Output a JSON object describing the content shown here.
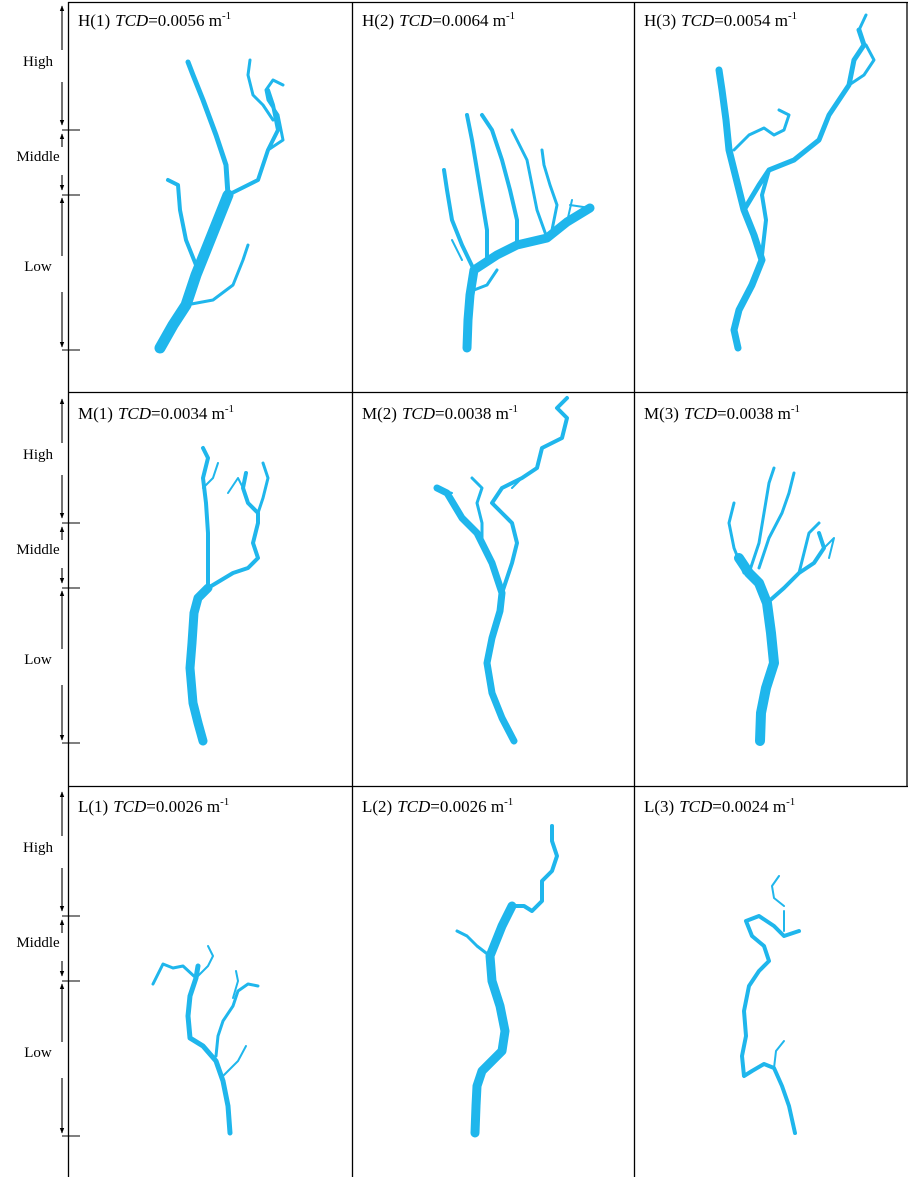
{
  "rows": [
    {
      "zones": [
        "High",
        "Middle",
        "Low"
      ],
      "panels": [
        {
          "label": "H(1)",
          "metric": "TCD",
          "value": "=0.0056 m",
          "exponent": "-1"
        },
        {
          "label": "H(2)",
          "metric": "TCD",
          "value": "=0.0064 m",
          "exponent": "-1"
        },
        {
          "label": "H(3)",
          "metric": "TCD",
          "value": "=0.0054 m",
          "exponent": "-1"
        }
      ]
    },
    {
      "zones": [
        "High",
        "Middle",
        "Low"
      ],
      "panels": [
        {
          "label": "M(1)",
          "metric": "TCD",
          "value": "=0.0034 m",
          "exponent": "-1"
        },
        {
          "label": "M(2)",
          "metric": "TCD",
          "value": "=0.0038 m",
          "exponent": "-1"
        },
        {
          "label": "M(3)",
          "metric": "TCD",
          "value": "=0.0038 m",
          "exponent": "-1"
        }
      ]
    },
    {
      "zones": [
        "High",
        "Middle",
        "Low"
      ],
      "panels": [
        {
          "label": "L(1)",
          "metric": "TCD",
          "value": "=0.0026 m",
          "exponent": "-1"
        },
        {
          "label": "L(2)",
          "metric": "TCD",
          "value": "=0.0026 m",
          "exponent": "-1"
        },
        {
          "label": "L(3)",
          "metric": "TCD",
          "value": "=0.0024 m",
          "exponent": "-1"
        }
      ]
    }
  ]
}
